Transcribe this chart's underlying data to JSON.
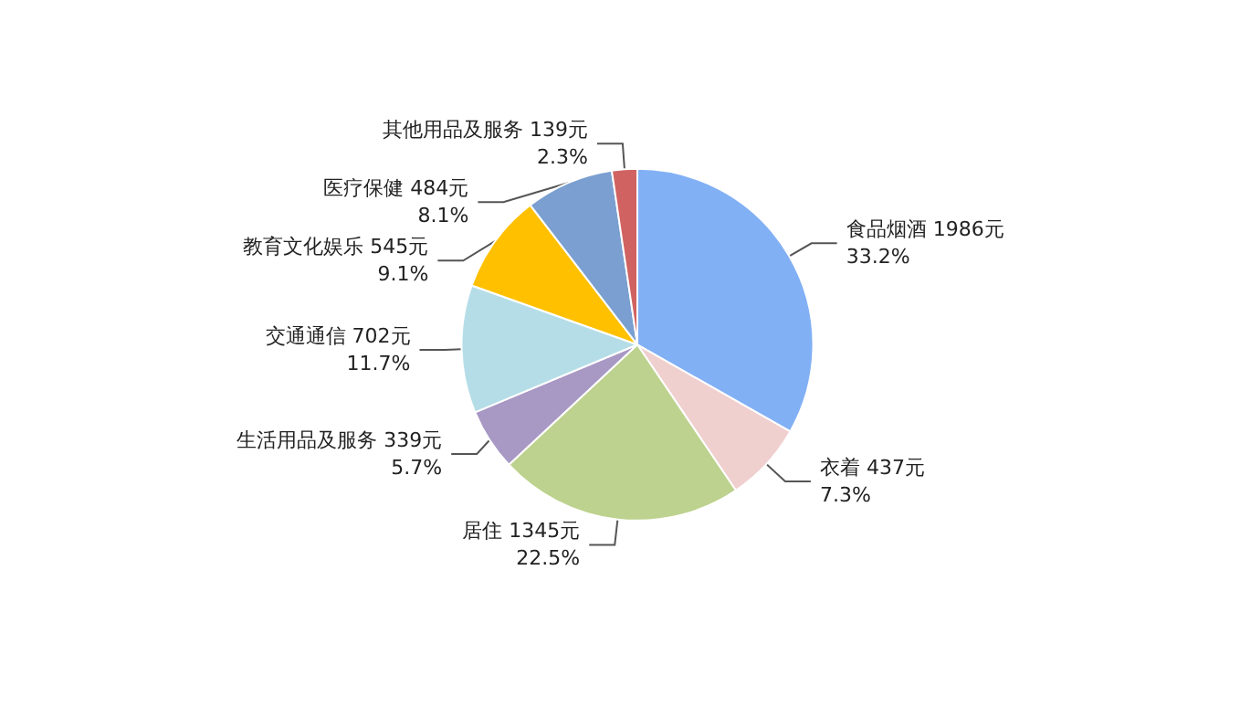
{
  "chart_data": {
    "type": "pie",
    "categories": [
      "食品烟酒",
      "衣着",
      "居住",
      "生活用品及服务",
      "交通通信",
      "教育文化娱乐",
      "医疗保健",
      "其他用品及服务"
    ],
    "values": [
      1986,
      437,
      1345,
      339,
      702,
      545,
      484,
      139
    ],
    "value_labels": [
      "1986元\n33.2%",
      "437元\n7.3%",
      "1345元\n22.5%",
      "339元\n5.7%",
      "702元\n11.7%",
      "545元\n9.1%",
      "484元\n8.1%",
      "139元\n2.3%"
    ],
    "colors": [
      "#82b0f5",
      "#f0cfcf",
      "#bdd28e",
      "#a898c4",
      "#b5dde7",
      "#ffc000",
      "#7a9fd0",
      "#d06262"
    ],
    "legend": false
  }
}
